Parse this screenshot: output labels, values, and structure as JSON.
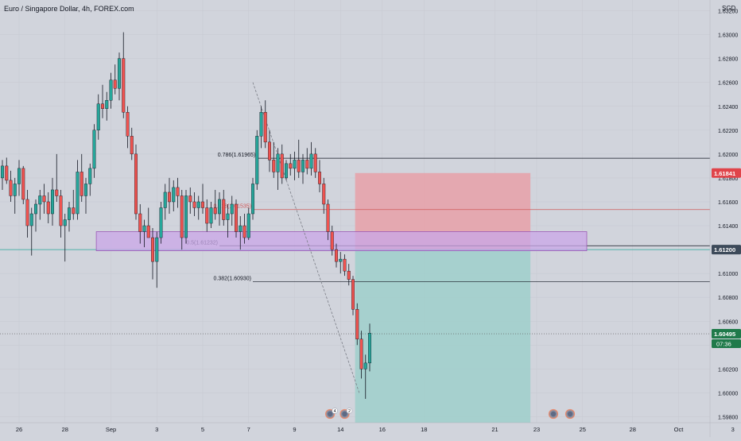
{
  "header": {
    "symbol_title": "Euro / Singapore Dollar, 4h, FOREX.com",
    "currency": "SGD"
  },
  "chart_data": {
    "type": "candlestick",
    "title": "Euro / Singapore Dollar, 4h, FOREX.com",
    "ylim": [
      1.5975,
      1.6329
    ],
    "y_ticks": [
      1.632,
      1.63,
      1.628,
      1.626,
      1.624,
      1.622,
      1.62,
      1.618,
      1.616,
      1.614,
      1.612,
      1.61,
      1.608,
      1.606,
      1.604,
      1.602,
      1.6,
      1.598
    ],
    "y_tick_labels": [
      "1.63200",
      "1.63000",
      "1.62800",
      "1.62600",
      "1.62400",
      "1.62200",
      "1.62000",
      "1.61800",
      "1.61600",
      "1.61400",
      "1.61200",
      "1.61000",
      "1.60800",
      "1.60600",
      "1.60400",
      "1.60200",
      "1.60000",
      "1.59800"
    ],
    "x_tick_labels": [
      "26",
      "28",
      "Sep",
      "3",
      "5",
      "7",
      "9",
      "14",
      "16",
      "18",
      "21",
      "23",
      "25",
      "28",
      "Oct",
      "3"
    ],
    "x_tick_bars": [
      4,
      15,
      26,
      37,
      48,
      59,
      70,
      81,
      91,
      101,
      118,
      128,
      139,
      151,
      162,
      175
    ],
    "candles": [
      [
        1.618,
        1.6195,
        1.617,
        1.619
      ],
      [
        1.619,
        1.6197,
        1.6175,
        1.6178
      ],
      [
        1.6178,
        1.6186,
        1.616,
        1.6165
      ],
      [
        1.6165,
        1.618,
        1.615,
        1.6175
      ],
      [
        1.6175,
        1.6195,
        1.6165,
        1.6188
      ],
      [
        1.6188,
        1.619,
        1.6158,
        1.6162
      ],
      [
        1.6162,
        1.617,
        1.613,
        1.614
      ],
      [
        1.614,
        1.6155,
        1.6115,
        1.615
      ],
      [
        1.615,
        1.6162,
        1.6135,
        1.6158
      ],
      [
        1.6158,
        1.617,
        1.6145,
        1.6165
      ],
      [
        1.6165,
        1.6175,
        1.615,
        1.616
      ],
      [
        1.616,
        1.6168,
        1.6142,
        1.615
      ],
      [
        1.615,
        1.618,
        1.614,
        1.617
      ],
      [
        1.617,
        1.62,
        1.616,
        1.6165
      ],
      [
        1.6165,
        1.617,
        1.613,
        1.614
      ],
      [
        1.614,
        1.615,
        1.611,
        1.6145
      ],
      [
        1.6145,
        1.616,
        1.6135,
        1.6155
      ],
      [
        1.6155,
        1.617,
        1.6145,
        1.615
      ],
      [
        1.615,
        1.6195,
        1.6145,
        1.6185
      ],
      [
        1.6185,
        1.62,
        1.616,
        1.6165
      ],
      [
        1.6165,
        1.618,
        1.615,
        1.6175
      ],
      [
        1.6175,
        1.6192,
        1.6165,
        1.6188
      ],
      [
        1.6188,
        1.6225,
        1.618,
        1.622
      ],
      [
        1.622,
        1.625,
        1.6212,
        1.6242
      ],
      [
        1.6242,
        1.6258,
        1.623,
        1.6238
      ],
      [
        1.6238,
        1.6252,
        1.6228,
        1.6245
      ],
      [
        1.6245,
        1.6268,
        1.6238,
        1.6262
      ],
      [
        1.6262,
        1.6275,
        1.625,
        1.6255
      ],
      [
        1.6255,
        1.6285,
        1.6245,
        1.628
      ],
      [
        1.628,
        1.6302,
        1.623,
        1.6235
      ],
      [
        1.6235,
        1.624,
        1.6205,
        1.6215
      ],
      [
        1.6215,
        1.6222,
        1.6195,
        1.62
      ],
      [
        1.62,
        1.6208,
        1.6145,
        1.615
      ],
      [
        1.615,
        1.6158,
        1.6125,
        1.6135
      ],
      [
        1.6135,
        1.6145,
        1.6122,
        1.614
      ],
      [
        1.614,
        1.6155,
        1.6132,
        1.613
      ],
      [
        1.613,
        1.6138,
        1.6095,
        1.611
      ],
      [
        1.611,
        1.6135,
        1.6088,
        1.613
      ],
      [
        1.613,
        1.616,
        1.6125,
        1.6155
      ],
      [
        1.6155,
        1.6175,
        1.6145,
        1.6168
      ],
      [
        1.6168,
        1.618,
        1.615,
        1.616
      ],
      [
        1.616,
        1.6178,
        1.6152,
        1.6172
      ],
      [
        1.6172,
        1.618,
        1.6155,
        1.6165
      ],
      [
        1.6165,
        1.617,
        1.612,
        1.613
      ],
      [
        1.613,
        1.617,
        1.6125,
        1.6165
      ],
      [
        1.6165,
        1.6172,
        1.615,
        1.616
      ],
      [
        1.616,
        1.6168,
        1.6148,
        1.6155
      ],
      [
        1.6155,
        1.6165,
        1.6145,
        1.616
      ],
      [
        1.616,
        1.6175,
        1.615,
        1.6155
      ],
      [
        1.6155,
        1.6162,
        1.6135,
        1.6142
      ],
      [
        1.6142,
        1.616,
        1.6138,
        1.6155
      ],
      [
        1.6155,
        1.617,
        1.6145,
        1.615
      ],
      [
        1.615,
        1.6168,
        1.614,
        1.6162
      ],
      [
        1.6162,
        1.617,
        1.614,
        1.6145
      ],
      [
        1.6145,
        1.6158,
        1.613,
        1.615
      ],
      [
        1.615,
        1.6165,
        1.614,
        1.6158
      ],
      [
        1.6158,
        1.6162,
        1.613,
        1.6135
      ],
      [
        1.6135,
        1.6148,
        1.612,
        1.614
      ],
      [
        1.614,
        1.615,
        1.6125,
        1.613
      ],
      [
        1.613,
        1.6155,
        1.6128,
        1.615
      ],
      [
        1.615,
        1.618,
        1.6145,
        1.6175
      ],
      [
        1.6175,
        1.622,
        1.617,
        1.6215
      ],
      [
        1.6215,
        1.624,
        1.6205,
        1.6235
      ],
      [
        1.6235,
        1.6245,
        1.6205,
        1.621
      ],
      [
        1.621,
        1.622,
        1.6185,
        1.6195
      ],
      [
        1.6195,
        1.621,
        1.618,
        1.6185
      ],
      [
        1.6185,
        1.6205,
        1.617,
        1.62
      ],
      [
        1.62,
        1.6208,
        1.6175,
        1.618
      ],
      [
        1.618,
        1.6195,
        1.6178,
        1.6192
      ],
      [
        1.6192,
        1.62,
        1.6182,
        1.6188
      ],
      [
        1.6188,
        1.6202,
        1.6178,
        1.6195
      ],
      [
        1.6195,
        1.6212,
        1.618,
        1.6185
      ],
      [
        1.6185,
        1.62,
        1.6175,
        1.6195
      ],
      [
        1.6195,
        1.6205,
        1.6183,
        1.6188
      ],
      [
        1.6188,
        1.621,
        1.6182,
        1.62
      ],
      [
        1.62,
        1.6205,
        1.618,
        1.6185
      ],
      [
        1.6185,
        1.6195,
        1.6168,
        1.6175
      ],
      [
        1.6175,
        1.618,
        1.615,
        1.6158
      ],
      [
        1.6158,
        1.6162,
        1.6128,
        1.6135
      ],
      [
        1.6135,
        1.614,
        1.6115,
        1.612
      ],
      [
        1.612,
        1.6125,
        1.6105,
        1.611
      ],
      [
        1.611,
        1.6118,
        1.61,
        1.6112
      ],
      [
        1.6112,
        1.6116,
        1.6098,
        1.6102
      ],
      [
        1.6102,
        1.6108,
        1.609,
        1.6095
      ],
      [
        1.6095,
        1.6098,
        1.6065,
        1.607
      ],
      [
        1.607,
        1.6075,
        1.604,
        1.6045
      ],
      [
        1.6045,
        1.6052,
        1.6012,
        1.602
      ],
      [
        1.602,
        1.6032,
        1.5995,
        1.6025
      ],
      [
        1.6025,
        1.6058,
        1.6018,
        1.605
      ]
    ],
    "horizontal_lines": [
      {
        "label": "0.786(1.61965)",
        "value": 1.61965,
        "color": "#131722"
      },
      {
        "label": "0.618(1.61535)",
        "value": 1.61535,
        "color": "#d05a5a"
      },
      {
        "label": "0.5(1.61232)",
        "value": 1.61232,
        "color": "#131722"
      },
      {
        "label": "0.382(1.60930)",
        "value": 1.6093,
        "color": "#131722"
      }
    ],
    "support_zone": {
      "top": 1.6135,
      "bottom": 1.6119,
      "fill": "#c9a7e8",
      "stroke": "#9b59b6"
    },
    "position": {
      "entry": 1.612,
      "stop": 1.61841,
      "target": 1.5975,
      "risk_fill": "#e8a0a8",
      "reward_fill": "#9fcfcb"
    },
    "teal_level": 1.612,
    "current_price": 1.60495,
    "price_tags": [
      {
        "label": "1.61841",
        "value": 1.61841,
        "bg": "#e0444a"
      },
      {
        "label": "1.61200",
        "value": 1.612,
        "bg": "#3d4a5a"
      },
      {
        "label": "1.60495",
        "value": 1.60495,
        "bg": "#1f7a4a"
      }
    ],
    "countdown": "07:36",
    "event_markers": [
      {
        "badge": "4",
        "bar": 78.5
      },
      {
        "badge": "2",
        "bar": 82
      },
      {
        "badge": "",
        "bar": 132
      },
      {
        "badge": "",
        "bar": 136
      }
    ],
    "colors": {
      "up": "#26a69a",
      "down": "#ef5350",
      "wick": "#131722",
      "grid": "#d1d4dc"
    }
  }
}
